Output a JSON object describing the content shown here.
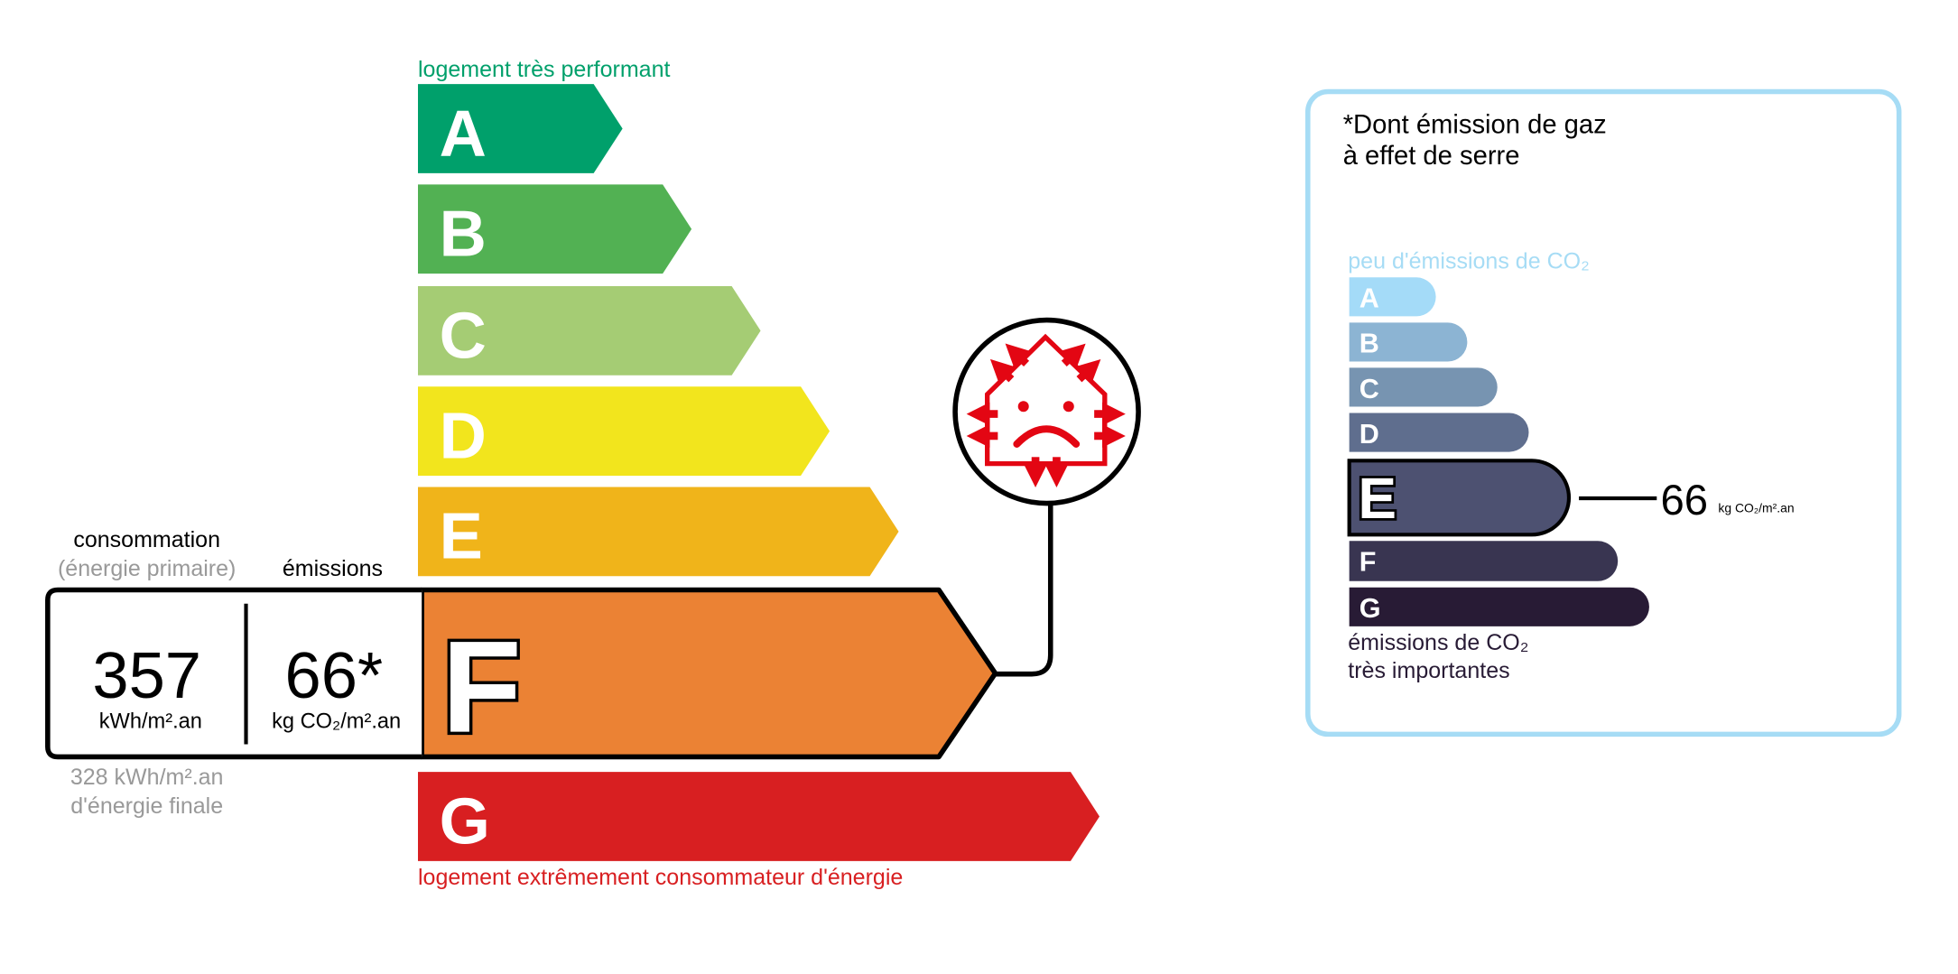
{
  "energy_label": {
    "top_label": "logement très performant",
    "top_label_color": "#00a06b",
    "bottom_label": "logement extrêmement consommateur d'énergie",
    "bottom_label_color": "#d81f21",
    "current_class": "F",
    "classes": [
      {
        "letter": "A",
        "color": "#00a06b"
      },
      {
        "letter": "B",
        "color": "#52b153"
      },
      {
        "letter": "C",
        "color": "#a5cc74"
      },
      {
        "letter": "D",
        "color": "#f2e51d"
      },
      {
        "letter": "E",
        "color": "#f0b41a"
      },
      {
        "letter": "F",
        "color": "#eb8234"
      },
      {
        "letter": "G",
        "color": "#d81f21"
      }
    ],
    "consumption_heading": "consommation",
    "consumption_subheading": "(énergie primaire)",
    "emissions_heading": "émissions",
    "consumption_value": "357",
    "consumption_unit": "kWh/m².an",
    "emissions_value": "66*",
    "emissions_unit": "kg CO₂/m².an",
    "final_energy_value": "328 kWh/m².an",
    "final_energy_label": "d'énergie finale",
    "icon": "house-heat-loss-sad-face-icon",
    "icon_color": "#e30613"
  },
  "ghg_panel": {
    "title_line1": "*Dont émission de gaz",
    "title_line2": "à effet de serre",
    "top_label": "peu d'émissions de CO₂",
    "bottom_label_line1": "émissions de CO₂",
    "bottom_label_line2": "très importantes",
    "border_color": "#a6dcf5",
    "current_class": "E",
    "value": "66",
    "unit": "kg CO₂/m².an",
    "classes": [
      {
        "letter": "A",
        "color": "#a4dbf8"
      },
      {
        "letter": "B",
        "color": "#8cb4d3"
      },
      {
        "letter": "C",
        "color": "#7794b1"
      },
      {
        "letter": "D",
        "color": "#5f6e8e"
      },
      {
        "letter": "E",
        "color": "#4d5171"
      },
      {
        "letter": "F",
        "color": "#393551"
      },
      {
        "letter": "G",
        "color": "#281b35"
      }
    ]
  }
}
